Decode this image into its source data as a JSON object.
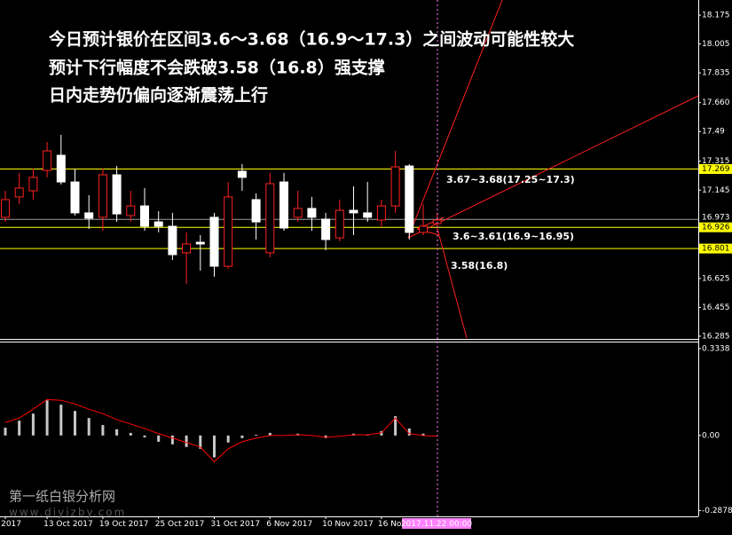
{
  "chart_data": [
    {
      "type": "candlestick",
      "annotations": [
        "今日预计银价在区间3.6～3.68（16.9～17.3）之间波动可能性较大",
        "预计下行幅度不会跌破3.58（16.8）强支撑",
        "日内走势仍偏向逐渐震荡上行"
      ],
      "level_notes": [
        "3.67~3.68(17.25~17.3)",
        "3.6~3.61(16.9~16.95)",
        "3.58(16.8)"
      ],
      "watermark": [
        "第一纸白银分析网",
        "www.diyizby.com"
      ],
      "categories": [
        "2017",
        null,
        null,
        "13 Oct 2017",
        null,
        null,
        null,
        "19 Oct 2017",
        null,
        null,
        null,
        "25 Oct 2017",
        null,
        null,
        null,
        "31 Oct 2017",
        null,
        null,
        null,
        "6 Nov 2017",
        null,
        null,
        null,
        "10 Nov 2017",
        null,
        null,
        null,
        "16 Nov 2017",
        null,
        null,
        null,
        null
      ],
      "crosshair_time": "2017.11.22 00:00",
      "open": [
        16.985,
        17.105,
        17.141,
        17.261,
        17.35,
        17.193,
        17.011,
        16.985,
        17.235,
        16.995,
        17.052,
        16.958,
        16.932,
        16.776,
        16.838,
        16.985,
        16.697,
        17.256,
        17.089,
        16.776,
        17.193,
        16.985,
        17.037,
        16.974,
        16.864,
        17.026,
        17.011,
        16.969,
        17.052,
        17.287,
        16.896,
        16.948
      ],
      "high": [
        17.141,
        17.246,
        17.272,
        17.428,
        17.47,
        17.272,
        17.115,
        17.272,
        17.287,
        17.141,
        17.157,
        17.021,
        17.011,
        16.896,
        16.88,
        17.011,
        17.193,
        17.298,
        17.126,
        17.246,
        17.246,
        17.141,
        17.105,
        17.011,
        17.089,
        17.167,
        17.193,
        17.089,
        17.376,
        17.298,
        17.063,
        17.011
      ],
      "low": [
        16.958,
        17.063,
        17.089,
        17.22,
        17.178,
        16.995,
        16.917,
        16.906,
        16.958,
        16.958,
        16.906,
        16.896,
        16.734,
        16.593,
        16.671,
        16.635,
        16.682,
        17.141,
        16.854,
        16.75,
        16.906,
        16.958,
        16.906,
        16.791,
        16.844,
        16.88,
        16.958,
        16.932,
        17.011,
        16.854,
        16.88,
        16.917
      ],
      "close": [
        17.089,
        17.157,
        17.22,
        17.376,
        17.193,
        17.011,
        16.979,
        17.235,
        17.005,
        17.052,
        16.932,
        16.932,
        16.765,
        16.828,
        16.828,
        16.697,
        17.105,
        17.22,
        16.958,
        17.183,
        16.922,
        17.037,
        16.985,
        16.854,
        17.026,
        17.011,
        16.985,
        17.052,
        17.282,
        16.896,
        16.932,
        16.969
      ],
      "up_color": "#000000",
      "up_outline": "#ff2020",
      "down_color": "#ffffff",
      "levels": [
        17.269,
        16.926,
        16.801
      ],
      "level_color": "#ffff00",
      "bid": 16.973,
      "bid_color": "#9a9a9a",
      "ylim": [
        16.269,
        18.264
      ],
      "yticks": [
        18.175,
        18.005,
        17.835,
        {
          "value": 17.66,
          "label": "17.660"
        },
        17.49,
        17.315,
        17.145,
        16.625,
        16.455,
        16.285
      ]
    },
    {
      "type": "bar",
      "series": [
        {
          "type": "bar",
          "color": "#c8c8c8",
          "values": [
            0.03,
            0.057,
            0.084,
            0.135,
            0.118,
            0.094,
            0.067,
            0.04,
            0.024,
            0.01,
            -0.007,
            -0.024,
            -0.034,
            -0.044,
            -0.051,
            -0.084,
            -0.027,
            -0.01,
            0.003,
            0.01,
            0.0,
            0.007,
            0.0,
            -0.01,
            0.0,
            0.007,
            0.003,
            0.017,
            0.074,
            0.027,
            0.007,
            0.0
          ]
        },
        {
          "type": "line",
          "color": "#ff0000",
          "values": [
            0.05,
            0.067,
            0.101,
            0.138,
            0.135,
            0.121,
            0.101,
            0.084,
            0.061,
            0.044,
            0.027,
            0.007,
            -0.01,
            -0.027,
            -0.044,
            -0.101,
            -0.051,
            -0.024,
            -0.01,
            0.0,
            0.0,
            0.003,
            0.0,
            -0.007,
            -0.003,
            0.003,
            0.003,
            0.01,
            0.067,
            0.007,
            0.0,
            -0.003
          ]
        }
      ],
      "ylim": [
        -0.307,
        0.357
      ],
      "yticks": [
        0.3338,
        {
          "value": 0,
          "label": "0.00"
        },
        -0.2878
      ]
    }
  ]
}
